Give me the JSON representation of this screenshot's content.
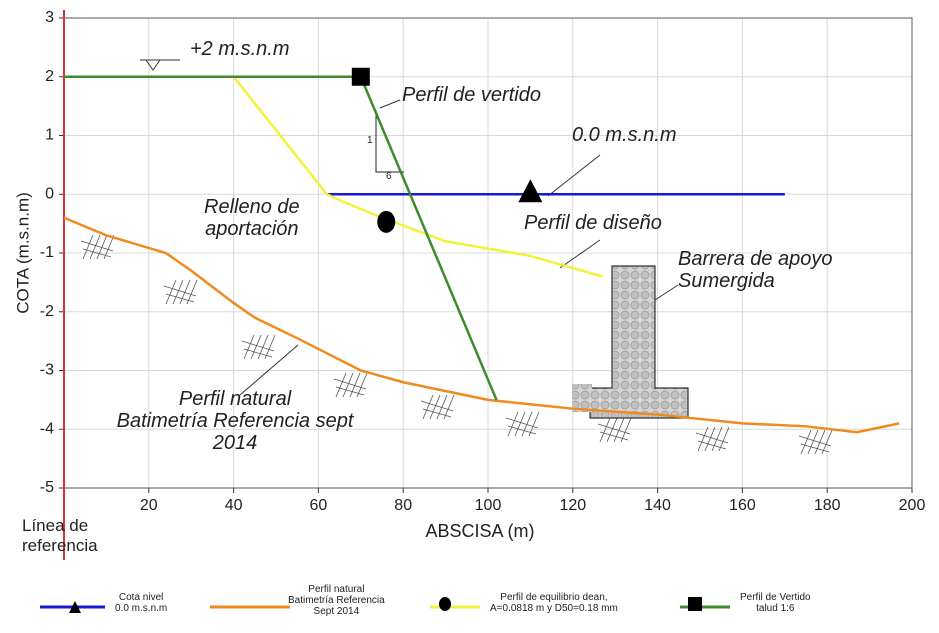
{
  "chart_data": {
    "type": "line",
    "x_label": "ABSCISA (m)",
    "y_label": "COTA (m.s.n.m)",
    "xlim": [
      0,
      200
    ],
    "ylim": [
      -5,
      3
    ],
    "xticks": [
      20,
      40,
      60,
      80,
      100,
      120,
      140,
      160,
      180,
      200
    ],
    "yticks": [
      -5,
      -4,
      -3,
      -2,
      -1,
      0,
      1,
      2,
      3
    ],
    "grid": true,
    "series": [
      {
        "name": "Cota nivel\n0.0 m.s.n.m",
        "color": "#1a1ad0",
        "marker": "triangle",
        "x": [
          62,
          170
        ],
        "values": [
          0,
          0
        ],
        "marker_x": 110,
        "marker_y": 0
      },
      {
        "name": "Perfil natural\nBatimetría Referencia\nSept 2014",
        "color": "#f08a1e",
        "x": [
          0,
          10,
          24,
          30,
          40,
          45,
          55,
          70,
          80,
          100,
          120,
          140,
          160,
          175,
          187,
          197
        ],
        "values": [
          -0.4,
          -0.7,
          -1.0,
          -1.3,
          -1.85,
          -2.1,
          -2.45,
          -3.0,
          -3.2,
          -3.5,
          -3.65,
          -3.75,
          -3.9,
          -3.95,
          -4.05,
          -3.9
        ]
      },
      {
        "name": "Perfil de equilibrio dean,\nA=0.0818 m y D50=0.18 mm",
        "color": "#f2f23a",
        "marker": "circle",
        "x": [
          0,
          40,
          62,
          65,
          75,
          90,
          110,
          127
        ],
        "values": [
          2,
          2,
          0,
          -0.1,
          -0.4,
          -0.8,
          -1.05,
          -1.4
        ],
        "marker_x": 76,
        "marker_y": -0.47
      },
      {
        "name": "Perfil de Vertido\ntalud 1:6",
        "color": "#3f8a2e",
        "marker": "square",
        "x": [
          0,
          70,
          102
        ],
        "values": [
          2,
          2,
          -3.5
        ],
        "marker_x": 70,
        "marker_y": 2
      }
    ],
    "annotations": [
      {
        "text": "+2 m.s.n.m"
      },
      {
        "text": "Perfil de vertido"
      },
      {
        "text": "0.0 m.s.n.m"
      },
      {
        "text": "Relleno de\naportación"
      },
      {
        "text": "Perfil de diseño"
      },
      {
        "text": "Barrera de apoyo\nSumergida"
      },
      {
        "text": "Perfil natural\nBatimetría Referencia sept\n2014"
      },
      {
        "text": "Línea de\nreferencia"
      },
      {
        "text": "1"
      },
      {
        "text": "6"
      }
    ]
  }
}
